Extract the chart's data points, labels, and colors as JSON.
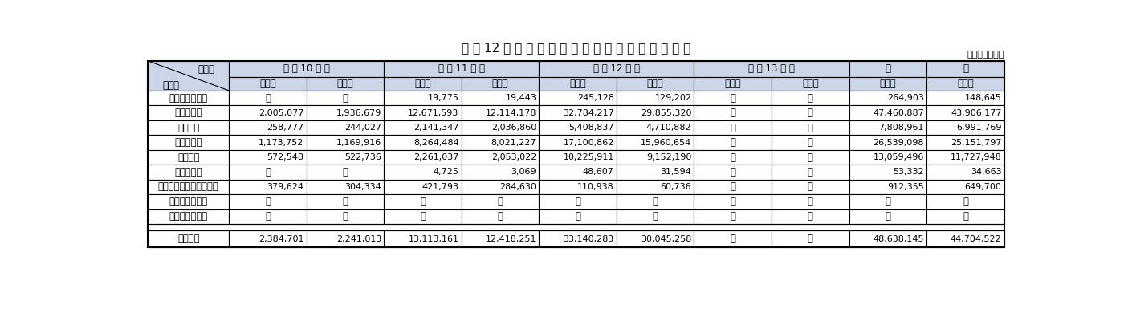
{
  "title": "平 成 12 年 度 農 林 水 産 業 施 設 等 災 害 復 旧 事 業 費",
  "unit_label": "（単位：千円）",
  "header_bg": "#ccd6e8",
  "border_color": "#000000",
  "col0_label_top": "区　分",
  "col0_label_bot": "項　目",
  "year_headers": [
    "平 成 10 年 災",
    "平 成 11 年 災",
    "平 成 12 年 災",
    "平 成 13 年 災",
    "合",
    "計"
  ],
  "sub_headers": [
    "事業費",
    "国　費",
    "事業費",
    "国　費",
    "事業費",
    "国　費",
    "事業費",
    "国　費",
    "事業費",
    "国　費"
  ],
  "rows": [
    [
      "直　轄　代　行",
      "－",
      "－",
      "19,775",
      "19,443",
      "245,128",
      "129,202",
      "－",
      "－",
      "264,903",
      "148,645"
    ],
    [
      "農　地　等",
      "2,005,077",
      "1,936,679",
      "12,671,593",
      "12,114,178",
      "32,784,217",
      "29,855,320",
      "－",
      "－",
      "47,460,887",
      "43,906,177"
    ],
    [
      "農　　地",
      "258,777",
      "244,027",
      "2,141,347",
      "2,036,860",
      "5,408,837",
      "4,710,882",
      "－",
      "－",
      "7,808,961",
      "6,991,769"
    ],
    [
      "農業用施設",
      "1,173,752",
      "1,169,916",
      "8,264,484",
      "8,021,227",
      "17,100,862",
      "15,960,654",
      "－",
      "－",
      "26,539,098",
      "25,151,797"
    ],
    [
      "林　　道",
      "572,548",
      "522,736",
      "2,261,037",
      "2,053,022",
      "10,225,911",
      "9,152,190",
      "－",
      "－",
      "13,059,496",
      "11,727,948"
    ],
    [
      "漁業用施設",
      "－",
      "－",
      "4,725",
      "3,069",
      "48,607",
      "31,594",
      "－",
      "－",
      "53,332",
      "34,663"
    ],
    [
      "農林水産業共同利用施設",
      "379,624",
      "304,334",
      "421,793",
      "284,630",
      "110,938",
      "60,736",
      "－",
      "－",
      "912,355",
      "649,700"
    ],
    [
      "治　山　施　設",
      "－",
      "－",
      "－",
      "－",
      "－",
      "－",
      "－",
      "－",
      "－",
      "－"
    ],
    [
      "国　有　林　野",
      "－",
      "－",
      "－",
      "－",
      "－",
      "－",
      "－",
      "－",
      "－",
      "－"
    ]
  ],
  "total_row": [
    "合　　計",
    "2,384,701",
    "2,241,013",
    "13,113,161",
    "12,418,251",
    "33,140,283",
    "30,045,258",
    "－",
    "－",
    "48,638,145",
    "44,704,522"
  ]
}
